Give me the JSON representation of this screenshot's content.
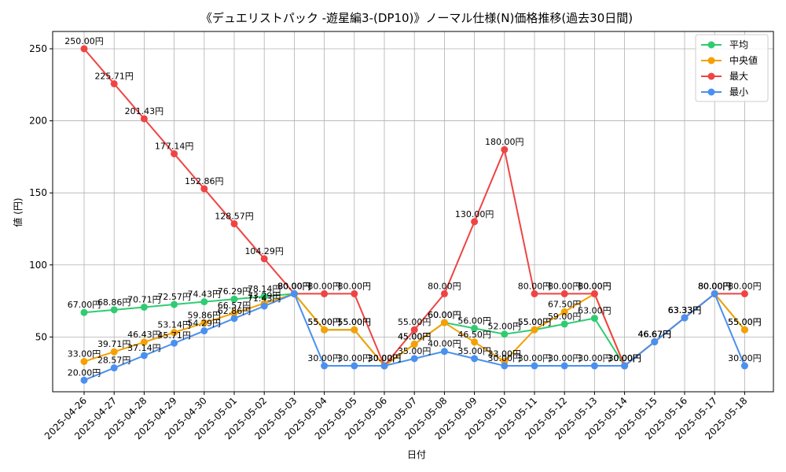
{
  "chart_data": {
    "type": "line",
    "title": "《デュエリストパック -遊星編3-(DP10)》ノーマル仕様(N)価格推移(過去30日間)",
    "xlabel": "日付",
    "ylabel": "値 (円)",
    "ylim": [
      12,
      262
    ],
    "yticks": [
      50,
      100,
      150,
      200,
      250
    ],
    "grid": true,
    "legend_position": "top-right",
    "categories": [
      "2025-04-26",
      "2025-04-27",
      "2025-04-28",
      "2025-04-29",
      "2025-04-30",
      "2025-05-01",
      "2025-05-02",
      "2025-05-03",
      "2025-05-04",
      "2025-05-05",
      "2025-05-06",
      "2025-05-07",
      "2025-05-08",
      "2025-05-09",
      "2025-05-10",
      "2025-05-11",
      "2025-05-12",
      "2025-05-13",
      "2025-05-14",
      "2025-05-15",
      "2025-05-16",
      "2025-05-17",
      "2025-05-18"
    ],
    "series": [
      {
        "name": "平均",
        "color": "#2ecc71",
        "values": [
          67.0,
          68.86,
          70.71,
          72.57,
          74.43,
          76.29,
          78.14,
          80.0,
          55.0,
          55.0,
          30.0,
          45.0,
          60.0,
          56.0,
          52.0,
          55.0,
          59.0,
          63.0,
          30.0,
          46.67,
          63.33,
          80.0,
          55.0
        ]
      },
      {
        "name": "中央値",
        "color": "#f5a000",
        "values": [
          33.0,
          39.71,
          46.43,
          53.14,
          59.86,
          66.57,
          73.29,
          80.0,
          55.0,
          55.0,
          30.0,
          45.0,
          60.0,
          46.5,
          33.0,
          55.0,
          67.5,
          80.0,
          30.0,
          46.67,
          63.33,
          80.0,
          55.0
        ]
      },
      {
        "name": "最大",
        "color": "#ef4444",
        "values": [
          250.0,
          225.71,
          201.43,
          177.14,
          152.86,
          128.57,
          104.29,
          80.0,
          80.0,
          80.0,
          30.0,
          55.0,
          80.0,
          130.0,
          180.0,
          80.0,
          80.0,
          80.0,
          30.0,
          46.67,
          63.33,
          80.0,
          80.0
        ]
      },
      {
        "name": "最小",
        "color": "#4a90f0",
        "values": [
          20.0,
          28.57,
          37.14,
          45.71,
          54.29,
          62.86,
          71.43,
          80.0,
          30.0,
          30.0,
          30.0,
          35.0,
          40.0,
          35.0,
          30.0,
          30.0,
          30.0,
          30.0,
          30.0,
          46.67,
          63.33,
          80.0,
          30.0
        ]
      }
    ],
    "label_suffix": "円"
  }
}
